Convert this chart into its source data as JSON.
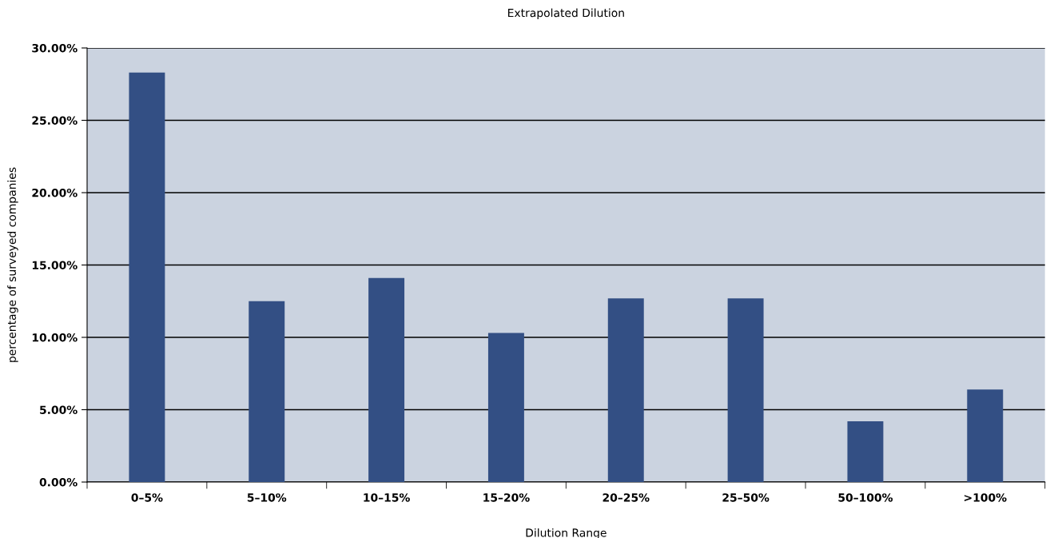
{
  "chart_data": {
    "type": "bar",
    "title": "Extrapolated Dilution",
    "xlabel": "Dilution Range",
    "ylabel": "percentage of surveyed companies",
    "categories": [
      "0–5%",
      "5–10%",
      "10–15%",
      "15–20%",
      "20–25%",
      "25–50%",
      "50–100%",
      ">100%"
    ],
    "values": [
      28.3,
      12.5,
      14.1,
      10.3,
      12.7,
      12.7,
      4.2,
      6.4
    ],
    "color": "#334f84",
    "ylim": [
      0,
      30
    ],
    "yticks": [
      {
        "value": 0,
        "label": "0.00%"
      },
      {
        "value": 5,
        "label": "5.00%"
      },
      {
        "value": 10,
        "label": "10.00%"
      },
      {
        "value": 15,
        "label": "15.00%"
      },
      {
        "value": 20,
        "label": "20.00%"
      },
      {
        "value": 25,
        "label": "25.00%"
      },
      {
        "value": 30,
        "label": "30.00%"
      }
    ],
    "grid": "y"
  }
}
